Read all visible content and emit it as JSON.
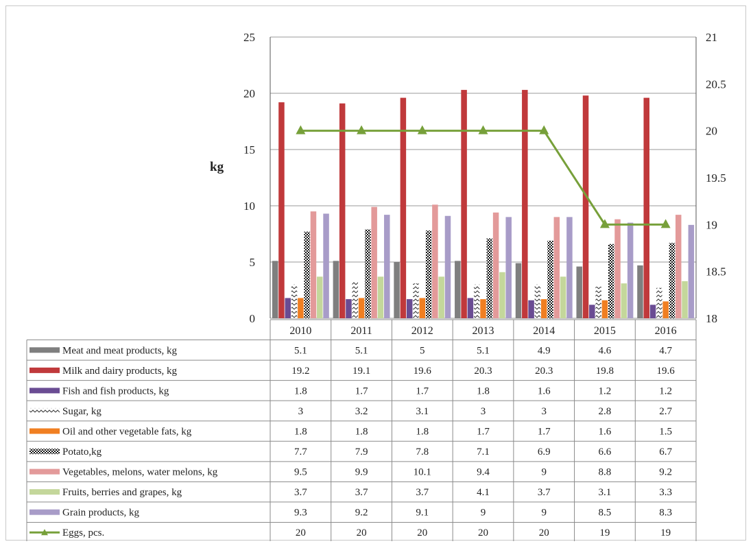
{
  "chart_data": {
    "type": "bar",
    "title": "",
    "ylabel": "kg",
    "ylim": [
      0,
      25
    ],
    "yticks": [
      0,
      5,
      10,
      15,
      20,
      25
    ],
    "y2lim": [
      18,
      21
    ],
    "y2ticks": [
      "18",
      "18.5",
      "19",
      "19.5",
      "20",
      "20.5",
      "21"
    ],
    "grid": true,
    "legend_placement": "bottom-table",
    "categories": [
      "2010",
      "2011",
      "2012",
      "2013",
      "2014",
      "2015",
      "2016"
    ],
    "series": [
      {
        "name": "Meat and meat products, kg",
        "kind": "bar",
        "axis": "left",
        "color": "#7f7f7f",
        "pattern": "solid",
        "values": [
          5.1,
          5.1,
          5,
          5.1,
          4.9,
          4.6,
          4.7
        ],
        "labels": [
          "5.1",
          "5.1",
          "5",
          "5.1",
          "4.9",
          "4.6",
          "4.7"
        ]
      },
      {
        "name": "Milk and dairy  products, kg",
        "kind": "bar",
        "axis": "left",
        "color": "#c0393b",
        "pattern": "solid",
        "values": [
          19.2,
          19.1,
          19.6,
          20.3,
          20.3,
          19.8,
          19.6
        ],
        "labels": [
          "19.2",
          "19.1",
          "19.6",
          "20.3",
          "20.3",
          "19.8",
          "19.6"
        ]
      },
      {
        "name": "Fish and fish products, kg",
        "kind": "bar",
        "axis": "left",
        "color": "#6a4c93",
        "pattern": "solid",
        "values": [
          1.8,
          1.7,
          1.7,
          1.8,
          1.6,
          1.2,
          1.2
        ],
        "labels": [
          "1.8",
          "1.7",
          "1.7",
          "1.8",
          "1.6",
          "1.2",
          "1.2"
        ]
      },
      {
        "name": "Sugar, kg",
        "kind": "bar",
        "axis": "left",
        "color": "#333333",
        "pattern": "zigzag",
        "values": [
          3,
          3.2,
          3.1,
          3,
          3,
          2.8,
          2.7
        ],
        "labels": [
          "3",
          "3.2",
          "3.1",
          "3",
          "3",
          "2.8",
          "2.7"
        ]
      },
      {
        "name": "Oil and other vegetable fats, kg",
        "kind": "bar",
        "axis": "left",
        "color": "#f07f22",
        "pattern": "solid",
        "values": [
          1.8,
          1.8,
          1.8,
          1.7,
          1.7,
          1.6,
          1.5
        ],
        "labels": [
          "1.8",
          "1.8",
          "1.8",
          "1.7",
          "1.7",
          "1.6",
          "1.5"
        ]
      },
      {
        "name": "Potato,kg",
        "kind": "bar",
        "axis": "left",
        "color": "#111111",
        "pattern": "checker",
        "values": [
          7.7,
          7.9,
          7.8,
          7.1,
          6.9,
          6.6,
          6.7
        ],
        "labels": [
          "7.7",
          "7.9",
          "7.8",
          "7.1",
          "6.9",
          "6.6",
          "6.7"
        ]
      },
      {
        "name": "Vegetables, melons, water melons, kg",
        "kind": "bar",
        "axis": "left",
        "color": "#e39a9a",
        "pattern": "solid",
        "values": [
          9.5,
          9.9,
          10.1,
          9.4,
          9,
          8.8,
          9.2
        ],
        "labels": [
          "9.5",
          "9.9",
          "10.1",
          "9.4",
          "9",
          "8.8",
          "9.2"
        ]
      },
      {
        "name": "Fruits, berries and grapes, kg",
        "kind": "bar",
        "axis": "left",
        "color": "#c4d79b",
        "pattern": "solid",
        "values": [
          3.7,
          3.7,
          3.7,
          4.1,
          3.7,
          3.1,
          3.3
        ],
        "labels": [
          "3.7",
          "3.7",
          "3.7",
          "4.1",
          "3.7",
          "3.1",
          "3.3"
        ]
      },
      {
        "name": "Grain products, kg",
        "kind": "bar",
        "axis": "left",
        "color": "#a89cc8",
        "pattern": "solid",
        "values": [
          9.3,
          9.2,
          9.1,
          9,
          9,
          8.5,
          8.3
        ],
        "labels": [
          "9.3",
          "9.2",
          "9.1",
          "9",
          "9",
          "8.5",
          "8.3"
        ]
      },
      {
        "name": "Eggs, pcs.",
        "kind": "line",
        "axis": "right",
        "color": "#77a03a",
        "marker": "triangle",
        "values": [
          20,
          20,
          20,
          20,
          20,
          19,
          19
        ],
        "labels": [
          "20",
          "20",
          "20",
          "20",
          "20",
          "19",
          "19"
        ]
      }
    ]
  }
}
